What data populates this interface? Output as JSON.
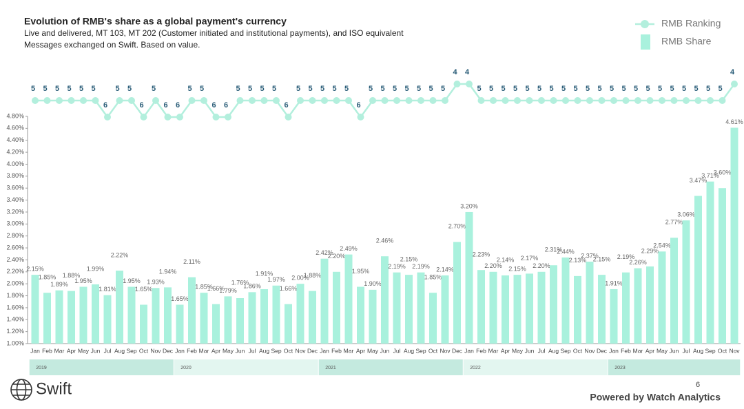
{
  "chart_data": {
    "type": "bar",
    "title": "Evolution of RMB's share as a global payment's currency",
    "subtitle": [
      "Live and delivered, MT 103, MT 202 (Customer initiated and institutional payments), and ISO equivalent",
      "Messages exchanged on Swift. Based on value."
    ],
    "groups": [
      {
        "label": "2019",
        "categories": [
          "Jan",
          "Feb",
          "Mar",
          "Apr",
          "May",
          "Jun",
          "Jul",
          "Aug",
          "Sep",
          "Oct",
          "Nov",
          "Dec"
        ]
      },
      {
        "label": "2020",
        "categories": [
          "Jan",
          "Feb",
          "Mar",
          "Apr",
          "May",
          "Jun",
          "Jul",
          "Aug",
          "Sep",
          "Oct",
          "Nov",
          "Dec"
        ]
      },
      {
        "label": "2021",
        "categories": [
          "Jan",
          "Feb",
          "Mar",
          "Apr",
          "May",
          "Jun",
          "Jul",
          "Aug",
          "Sep",
          "Oct",
          "Nov",
          "Dec"
        ]
      },
      {
        "label": "2022",
        "categories": [
          "Jan",
          "Feb",
          "Mar",
          "Apr",
          "May",
          "Jun",
          "Jul",
          "Aug",
          "Sep",
          "Oct",
          "Nov",
          "Dec"
        ]
      },
      {
        "label": "2023",
        "categories": [
          "Jan",
          "Feb",
          "Mar",
          "Apr",
          "May",
          "Jun",
          "Jul",
          "Aug",
          "Sep",
          "Oct",
          "Nov"
        ]
      }
    ],
    "series": [
      {
        "name": "RMB Ranking",
        "type": "line",
        "axis": "y2",
        "color": "#b3efdd",
        "values": [
          5,
          5,
          5,
          5,
          5,
          5,
          6,
          5,
          5,
          6,
          5,
          6,
          6,
          5,
          5,
          6,
          6,
          5,
          5,
          5,
          5,
          6,
          5,
          5,
          5,
          5,
          5,
          6,
          5,
          5,
          5,
          5,
          5,
          5,
          5,
          4,
          4,
          5,
          5,
          5,
          5,
          5,
          5,
          5,
          5,
          5,
          5,
          5,
          5,
          5,
          5,
          5,
          5,
          5,
          5,
          5,
          5,
          5,
          4
        ]
      },
      {
        "name": "RMB Share",
        "type": "bar",
        "color": "#a9f1dd",
        "values": [
          2.15,
          1.85,
          1.89,
          1.88,
          1.95,
          1.99,
          1.81,
          2.22,
          1.95,
          1.65,
          1.93,
          1.94,
          1.65,
          2.11,
          1.85,
          1.66,
          1.79,
          1.76,
          1.86,
          1.91,
          1.97,
          1.66,
          2.0,
          1.88,
          2.42,
          2.2,
          2.49,
          1.95,
          1.9,
          2.46,
          2.19,
          2.15,
          2.19,
          1.85,
          2.14,
          2.7,
          3.2,
          2.23,
          2.2,
          2.14,
          2.15,
          2.17,
          2.2,
          2.31,
          2.44,
          2.13,
          2.37,
          2.15,
          1.91,
          2.19,
          2.26,
          2.29,
          2.54,
          2.77,
          3.06,
          3.47,
          3.71,
          3.6,
          4.61
        ],
        "value_labels": [
          "2.15%",
          "1.85%",
          "1.89%",
          "1.88%",
          "1.95%",
          "1.99%",
          "1.81%",
          "2.22%",
          "1.95%",
          "1.65%",
          "1.93%",
          "1.94%",
          "1.65%",
          "2.11%",
          "1.85%",
          "1.66%",
          "1.79%",
          "1.76%",
          "1.86%",
          "1.91%",
          "1.97%",
          "1.66%",
          "2.00%",
          "1.88%",
          "2.42%",
          "2.20%",
          "2.49%",
          "1.95%",
          "1.90%",
          "2.46%",
          "2.19%",
          "2.15%",
          "2.19%",
          "1.85%",
          "2.14%",
          "2.70%",
          "3.20%",
          "2.23%",
          "2.20%",
          "2.14%",
          "2.15%",
          "2.17%",
          "2.20%",
          "2.31%",
          "2.44%",
          "2.13%",
          "2.37%",
          "2.15%",
          "1.91%",
          "2.19%",
          "2.26%",
          "2.29%",
          "2.54%",
          "2.77%",
          "3.06%",
          "3.47%",
          "3.71%",
          "3.60%",
          "4.61%"
        ]
      }
    ],
    "ylim": [
      1.0,
      4.8
    ],
    "yticks": [
      {
        "value": 1.0,
        "label": "1.00%"
      },
      {
        "value": 1.2,
        "label": "1.20%"
      },
      {
        "value": 1.4,
        "label": "1.40%"
      },
      {
        "value": 1.6,
        "label": "1.60%"
      },
      {
        "value": 1.8,
        "label": "1.80%"
      },
      {
        "value": 2.0,
        "label": "2.00%"
      },
      {
        "value": 2.2,
        "label": "2.20%"
      },
      {
        "value": 2.4,
        "label": "2.40%"
      },
      {
        "value": 2.6,
        "label": "2.60%"
      },
      {
        "value": 2.8,
        "label": "2.80%"
      },
      {
        "value": 3.0,
        "label": "3.00%"
      },
      {
        "value": 3.2,
        "label": "3.20%"
      },
      {
        "value": 3.4,
        "label": "3.40%"
      },
      {
        "value": 3.6,
        "label": "3.60%"
      },
      {
        "value": 3.8,
        "label": "3.80%"
      },
      {
        "value": 4.0,
        "label": "4.00%"
      },
      {
        "value": 4.2,
        "label": "4.20%"
      },
      {
        "value": 4.4,
        "label": "4.40%"
      },
      {
        "value": 4.6,
        "label": "4.60%"
      },
      {
        "value": 4.8,
        "label": "4.80%"
      }
    ],
    "y2lim": [
      7,
      3
    ],
    "grid": false,
    "legend": "top-right"
  },
  "footer": {
    "brand": "Swift",
    "page": "6",
    "credit": "Powered by Watch Analytics"
  }
}
